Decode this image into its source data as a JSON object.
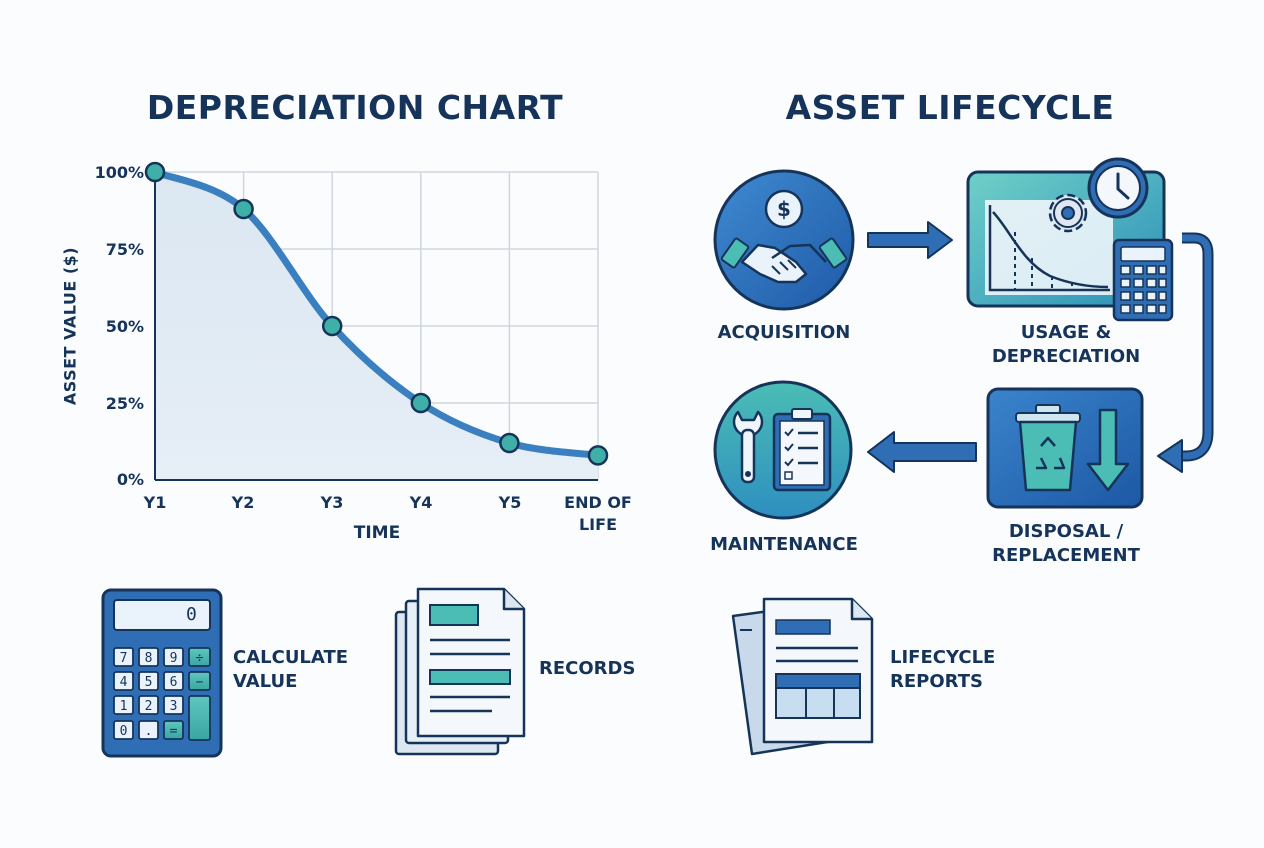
{
  "left_title": "DEPRECIATION CHART",
  "right_title": "ASSET LIFECYCLE",
  "chart_data": {
    "type": "line",
    "x": [
      "Y1",
      "Y2",
      "Y3",
      "Y4",
      "Y5",
      "END OF\nLIFE"
    ],
    "x_lines": [
      "Y1",
      "Y2",
      "Y3",
      "Y4",
      "Y5",
      "END OF",
      "LIFE"
    ],
    "series": [
      {
        "values": [
          100,
          88,
          50,
          25,
          12,
          8
        ]
      }
    ],
    "yticks": [
      "100%",
      "75%",
      "50%",
      "25%",
      "0%"
    ],
    "xlabel": "TIME",
    "ylabel": "ASSET VALUE ($)",
    "ylim": [
      0,
      100
    ],
    "grid": true,
    "colors": {
      "line": "#3a80c0",
      "marker": "#3fb0a7",
      "fill": "#dde9f3"
    }
  },
  "lifecycle": {
    "acquisition": "ACQUISITION",
    "usage": [
      "USAGE &",
      "DEPRECIATION"
    ],
    "disposal": [
      "DISPOSAL /",
      "REPLACEMENT"
    ],
    "maintenance": "MAINTENANCE"
  },
  "bottom": {
    "calculate": [
      "CALCULATE",
      "VALUE"
    ],
    "records": "RECORDS",
    "reports": [
      "LIFECYCLE",
      "REPORTS"
    ]
  },
  "calculator": {
    "display": "0",
    "keys": [
      "7",
      "8",
      "9",
      "÷",
      "4",
      "5",
      "6",
      "−",
      "1",
      "2",
      "3",
      "0",
      ".",
      "="
    ]
  },
  "icons": [
    "dollar-icon",
    "handshake-icon",
    "gear-icon",
    "clock-icon",
    "calculator-icon",
    "recycle-bin-icon",
    "down-arrow-icon",
    "wrench-icon",
    "clipboard-icon",
    "documents-icon",
    "report-icon"
  ],
  "palette": {
    "navy": "#16345a",
    "blue": "#2f6db5",
    "teal": "#3fb0a7",
    "light": "#dde9f3"
  }
}
